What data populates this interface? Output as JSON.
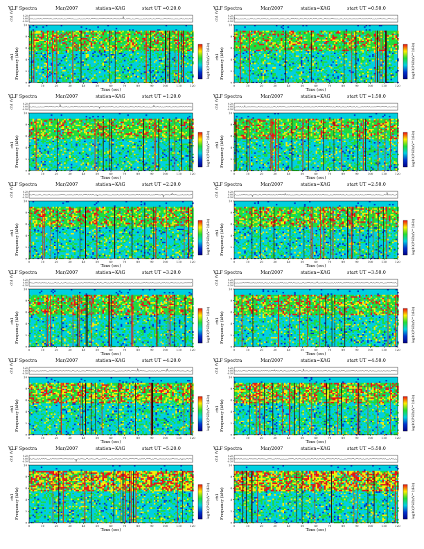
{
  "page": {
    "title": "VLF Spectra — station KAG — 2007 March"
  },
  "labels": {
    "header_prefix": "VLF Spectra",
    "date": "Mar/2007",
    "station": "station=KAG",
    "start_prefix": "start  UT",
    "time_axis": "Time  (sec)",
    "freq_axis": "Frequency (kHz)",
    "ch_axis": "ch1 (V)",
    "ch_label": "ch1",
    "colorbar_label": "log10(PSD)(V^2/Hz)"
  },
  "panels": [
    {
      "start": "=0:20:0"
    },
    {
      "start": "=0:50:0"
    },
    {
      "start": "=1:20:0"
    },
    {
      "start": "=1:50:0"
    },
    {
      "start": "=2:20:0"
    },
    {
      "start": "=2:50:0"
    },
    {
      "start": "=3:20:0"
    },
    {
      "start": "=3:50:0"
    },
    {
      "start": "=4:20:0"
    },
    {
      "start": "=4:50:0"
    },
    {
      "start": "=5:20:0"
    },
    {
      "start": "=5:50:0"
    }
  ],
  "colors": {
    "background": "#00cfe0",
    "low": "#0033cc",
    "mid": "#22dd33",
    "high": "#ffee00",
    "peak": "#ee1111",
    "dark": "#330000"
  },
  "chart_data": {
    "type": "heatmap",
    "description_series": "VLF spectrogram, 12 panels, 120 s each",
    "x_axis": {
      "label": "Time  (sec)",
      "range": [
        0,
        120
      ],
      "ticks": [
        0,
        10,
        20,
        30,
        40,
        50,
        60,
        70,
        80,
        90,
        100,
        110,
        120
      ]
    },
    "y_axis": {
      "label": "Frequency (kHz)",
      "range": [
        0,
        10
      ],
      "ticks": [
        0,
        2,
        4,
        6,
        8,
        10
      ]
    },
    "waveform_axis": {
      "label": "ch1 (V)",
      "ticks": [
        "0.20",
        "0.00",
        "-0.20"
      ]
    },
    "colorbar": {
      "label": "log10(PSD)(V^2/Hz)"
    },
    "panel_starts_ut": [
      "0:20:0",
      "0:50:0",
      "1:20:0",
      "1:50:0",
      "2:20:0",
      "2:50:0",
      "3:20:0",
      "3:50:0",
      "4:20:0",
      "4:50:0",
      "5:20:0",
      "5:50:0"
    ],
    "panel_intensity": [
      0.45,
      0.45,
      0.45,
      0.45,
      0.5,
      0.5,
      0.5,
      0.5,
      0.65,
      0.6,
      0.85,
      0.85
    ]
  }
}
